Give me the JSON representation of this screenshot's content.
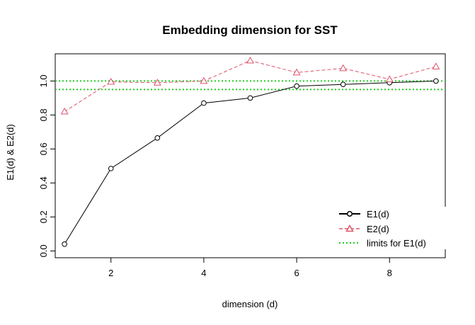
{
  "chart_data": {
    "type": "line",
    "title": "Embedding dimension for SST",
    "xlabel": "dimension (d)",
    "ylabel": "E1(d) & E2(d)",
    "xlim": [
      0.8,
      9.2
    ],
    "ylim": [
      -0.04,
      1.16
    ],
    "xticks": [
      "2",
      "4",
      "6",
      "8"
    ],
    "yticks": [
      "0.0",
      "0.2",
      "0.4",
      "0.6",
      "0.8",
      "1.0"
    ],
    "grid": false,
    "legend_position": "bottom-right",
    "x": [
      1,
      2,
      3,
      4,
      5,
      6,
      7,
      8,
      9
    ],
    "series": [
      {
        "name": "E1(d)",
        "color": "#000000",
        "marker": "circle",
        "line": "solid",
        "values": [
          0.04,
          0.485,
          0.665,
          0.87,
          0.9,
          0.97,
          0.98,
          0.99,
          1.0
        ]
      },
      {
        "name": "E2(d)",
        "color": "#DF536B",
        "marker": "triangle",
        "line": "dashed",
        "values": [
          0.82,
          0.995,
          0.99,
          1.0,
          1.12,
          1.05,
          1.075,
          1.01,
          1.085
        ]
      }
    ],
    "reference_lines": {
      "name": "limits for E1(d)",
      "color": "#22CC22",
      "values": [
        0.95,
        1.0
      ]
    }
  }
}
